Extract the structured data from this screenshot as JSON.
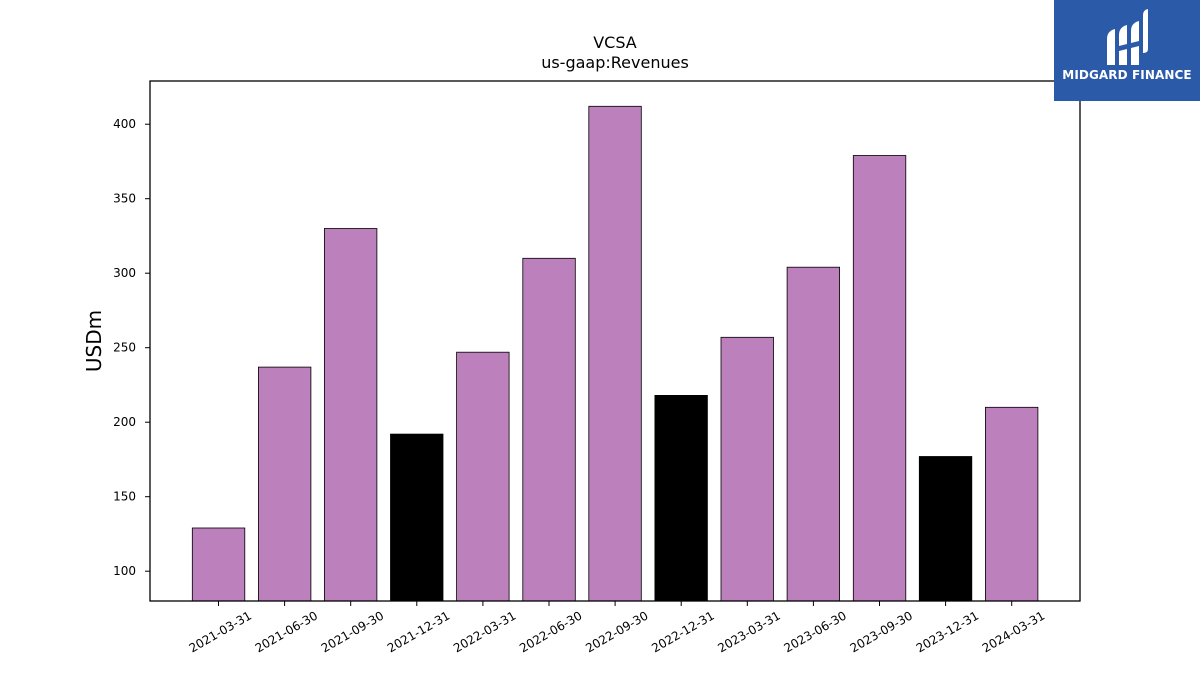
{
  "chart_data": {
    "type": "bar",
    "title": "VCSA",
    "subtitle": "us-gaap:Revenues",
    "xlabel": "",
    "ylabel": "USDm",
    "categories": [
      "2021-03-31",
      "2021-06-30",
      "2021-09-30",
      "2021-12-31",
      "2022-03-31",
      "2022-06-30",
      "2022-09-30",
      "2022-12-31",
      "2023-03-31",
      "2023-06-30",
      "2023-09-30",
      "2023-12-31",
      "2024-03-31"
    ],
    "values": [
      129,
      237,
      330,
      192,
      247,
      310,
      412,
      218,
      257,
      304,
      379,
      177,
      210
    ],
    "bar_colors": [
      "#bc80bd",
      "#bc80bd",
      "#bc80bd",
      "#000000",
      "#bc80bd",
      "#bc80bd",
      "#bc80bd",
      "#000000",
      "#bc80bd",
      "#bc80bd",
      "#bc80bd",
      "#000000",
      "#bc80bd"
    ],
    "ylim": [
      80,
      429
    ],
    "yticks": [
      100,
      150,
      200,
      250,
      300,
      350,
      400
    ],
    "grid": false,
    "legend": "none"
  },
  "logo": {
    "text": "MIDGARD FINANCE",
    "background": "#2b5aa8"
  }
}
